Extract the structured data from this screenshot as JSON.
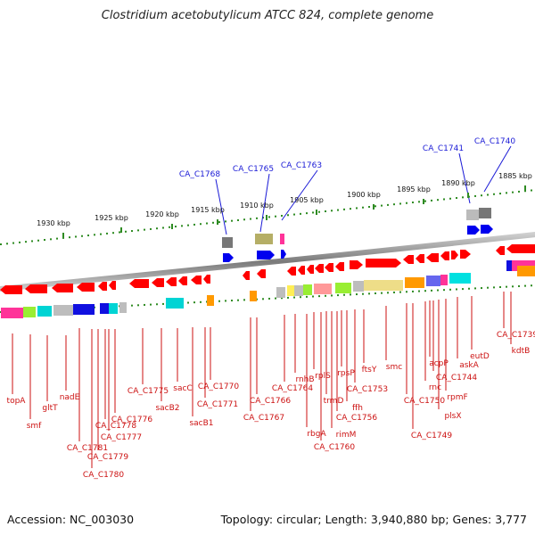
{
  "title": "Clostridium acetobutylicum ATCC 824, complete genome",
  "accession": "Accession: NC_003030",
  "topology": "Topology: circular; Length: 3,940,880 bp; Genes: 3,777",
  "scale_ticks": [
    "1930 kbp",
    "1925 kbp",
    "1920 kbp",
    "1915 kbp",
    "1910 kbp",
    "1905 kbp",
    "1900 kbp",
    "1895 kbp",
    "1890 kbp",
    "1885 kbp"
  ],
  "upper_labels": [
    "CA_C1768",
    "CA_C1765",
    "CA_C1763",
    "CA_C1741",
    "CA_C1740"
  ],
  "lower_labels": [
    "topA",
    "smf",
    "gltT",
    "nadE",
    "CA_C1781",
    "CA_C1780",
    "CA_C1779",
    "CA_C1778",
    "CA_C1777",
    "CA_C1776",
    "CA_C1775",
    "sacB2",
    "sacC",
    "sacB1",
    "CA_C1771",
    "CA_C1770",
    "CA_C1767",
    "CA_C1766",
    "CA_C1764",
    "rnhB",
    "rbgA",
    "rplS",
    "CA_C1760",
    "trmD",
    "rimM",
    "CA_C1756",
    "rpsP",
    "ffh",
    "CA_C1753",
    "ftsY",
    "smc",
    "CA_C1750",
    "CA_C1749",
    "rnc",
    "acpP",
    "CA_C1744",
    "plsX",
    "rpmF",
    "askA",
    "eutD",
    "CA_C1739",
    "kdtB"
  ],
  "colors": {
    "gene_red": "#ff0000",
    "blue": "#0000ee",
    "dots": "#2e8b22",
    "label_red": "#cc1111",
    "label_blue": "#1a1ad6"
  }
}
